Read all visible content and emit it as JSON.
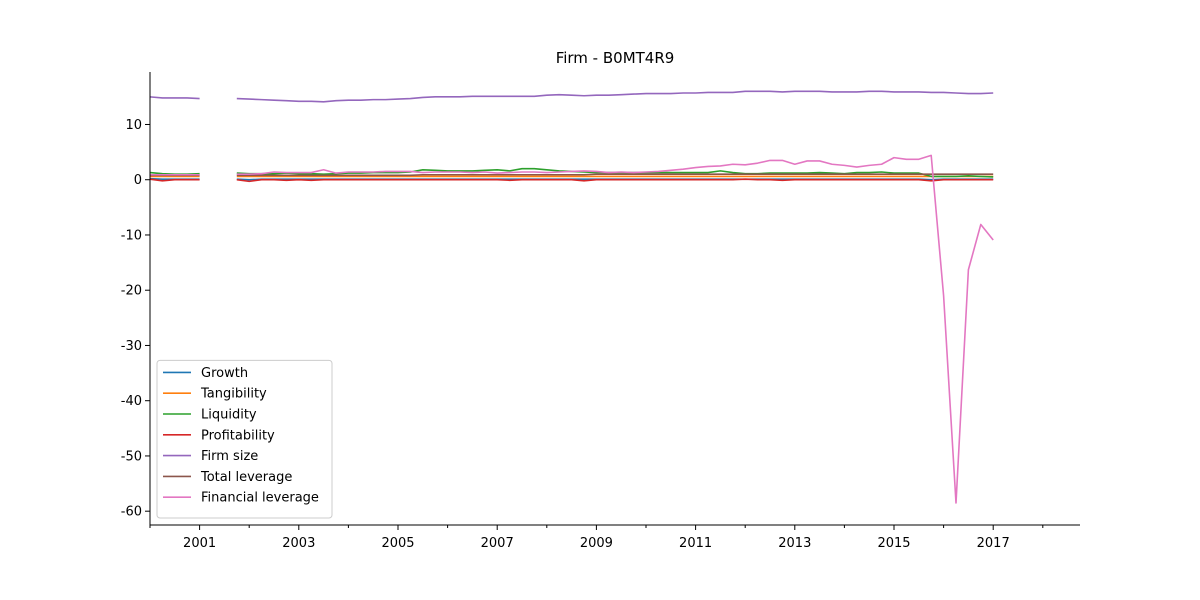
{
  "chart_data": {
    "type": "line",
    "title": "Firm - B0MT4R9",
    "xlabel": "",
    "ylabel": "",
    "xlim": [
      2000.0,
      2018.75
    ],
    "ylim": [
      -62.5,
      19.5
    ],
    "x_ticks": [
      2001,
      2003,
      2005,
      2007,
      2009,
      2011,
      2013,
      2015,
      2017
    ],
    "x_minor_ticks": [
      2000,
      2002,
      2004,
      2006,
      2008,
      2010,
      2012,
      2014,
      2016,
      2018
    ],
    "y_ticks": [
      10,
      0,
      -10,
      -20,
      -30,
      -40,
      -50,
      -60
    ],
    "grid": false,
    "legend_position": "lower-left",
    "x": [
      2000.0,
      2000.25,
      2000.5,
      2000.75,
      2001.0,
      2001.25,
      2001.5,
      2001.75,
      2002.0,
      2002.25,
      2002.5,
      2002.75,
      2003.0,
      2003.25,
      2003.5,
      2003.75,
      2004.0,
      2004.25,
      2004.5,
      2004.75,
      2005.0,
      2005.25,
      2005.5,
      2005.75,
      2006.0,
      2006.25,
      2006.5,
      2006.75,
      2007.0,
      2007.25,
      2007.5,
      2007.75,
      2008.0,
      2008.25,
      2008.5,
      2008.75,
      2009.0,
      2009.25,
      2009.5,
      2009.75,
      2010.0,
      2010.25,
      2010.5,
      2010.75,
      2011.0,
      2011.25,
      2011.5,
      2011.75,
      2012.0,
      2012.25,
      2012.5,
      2012.75,
      2013.0,
      2013.25,
      2013.5,
      2013.75,
      2014.0,
      2014.25,
      2014.5,
      2014.75,
      2015.0,
      2015.25,
      2015.5,
      2015.75,
      2016.0,
      2016.25,
      2016.5,
      2016.75,
      2017.0
    ],
    "series": [
      {
        "name": "Growth",
        "color": "#1f77b4",
        "values": [
          0.2,
          0.1,
          0.1,
          0.1,
          0.1,
          null,
          null,
          0.1,
          0.0,
          0.1,
          0.1,
          0.1,
          0.1,
          0.1,
          0.1,
          0.1,
          0.1,
          0.1,
          0.1,
          0.1,
          0.1,
          0.1,
          0.1,
          0.1,
          0.1,
          0.1,
          0.1,
          0.1,
          0.1,
          0.1,
          0.1,
          0.1,
          0.1,
          0.1,
          0.1,
          0.1,
          0.1,
          0.1,
          0.1,
          0.1,
          0.1,
          0.1,
          0.1,
          0.1,
          0.1,
          0.1,
          0.1,
          0.1,
          0.1,
          0.1,
          0.1,
          0.1,
          0.1,
          0.1,
          0.1,
          0.1,
          0.1,
          0.1,
          0.1,
          0.1,
          0.1,
          0.1,
          0.1,
          0.0,
          0.1,
          0.1,
          0.1,
          0.1,
          0.1
        ]
      },
      {
        "name": "Tangibility",
        "color": "#ff7f0e",
        "values": [
          0.6,
          0.6,
          0.6,
          0.6,
          0.6,
          null,
          null,
          0.6,
          0.6,
          0.6,
          0.6,
          0.6,
          0.6,
          0.6,
          0.6,
          0.6,
          0.6,
          0.6,
          0.6,
          0.6,
          0.6,
          0.6,
          0.6,
          0.6,
          0.6,
          0.6,
          0.6,
          0.6,
          0.6,
          0.6,
          0.6,
          0.6,
          0.6,
          0.6,
          0.6,
          0.6,
          0.6,
          0.6,
          0.6,
          0.6,
          0.6,
          0.6,
          0.6,
          0.6,
          0.6,
          0.6,
          0.6,
          0.6,
          0.6,
          0.6,
          0.6,
          0.6,
          0.6,
          0.6,
          0.6,
          0.6,
          0.6,
          0.6,
          0.6,
          0.6,
          0.6,
          0.6,
          0.6,
          0.6,
          0.6,
          0.6,
          0.6,
          0.6,
          0.6
        ]
      },
      {
        "name": "Liquidity",
        "color": "#2ca02c",
        "values": [
          1.3,
          1.1,
          1.0,
          1.0,
          1.1,
          null,
          null,
          1.2,
          1.1,
          1.1,
          1.1,
          1.2,
          1.1,
          1.1,
          1.0,
          1.1,
          1.2,
          1.2,
          1.3,
          1.3,
          1.3,
          1.4,
          1.8,
          1.7,
          1.6,
          1.6,
          1.6,
          1.7,
          1.8,
          1.6,
          2.0,
          2.0,
          1.8,
          1.6,
          1.5,
          1.4,
          1.3,
          1.3,
          1.3,
          1.3,
          1.3,
          1.3,
          1.3,
          1.3,
          1.3,
          1.3,
          1.6,
          1.3,
          1.1,
          1.1,
          1.2,
          1.2,
          1.2,
          1.2,
          1.3,
          1.2,
          1.1,
          1.3,
          1.3,
          1.4,
          1.2,
          1.2,
          1.2,
          0.6,
          0.6,
          0.6,
          0.7,
          0.6,
          0.5
        ]
      },
      {
        "name": "Profitability",
        "color": "#d62728",
        "values": [
          0.1,
          -0.2,
          0.0,
          0.0,
          0.0,
          null,
          null,
          0.0,
          -0.3,
          0.0,
          0.0,
          -0.1,
          0.0,
          -0.1,
          0.0,
          0.0,
          0.0,
          0.0,
          0.0,
          0.0,
          0.0,
          0.0,
          0.0,
          0.0,
          0.0,
          0.0,
          0.0,
          0.0,
          0.0,
          -0.1,
          0.0,
          0.0,
          0.0,
          0.0,
          0.0,
          -0.2,
          0.0,
          0.0,
          0.0,
          0.0,
          0.0,
          0.0,
          0.0,
          0.0,
          0.0,
          0.0,
          0.0,
          0.0,
          0.1,
          0.0,
          0.0,
          -0.1,
          0.0,
          0.0,
          0.0,
          0.0,
          0.0,
          0.0,
          0.0,
          0.0,
          0.0,
          0.0,
          0.0,
          -0.2,
          0.0,
          0.0,
          0.0,
          0.0,
          0.0
        ]
      },
      {
        "name": "Firm size",
        "color": "#9467bd",
        "values": [
          15.0,
          14.8,
          14.8,
          14.8,
          14.7,
          null,
          null,
          14.7,
          14.6,
          14.5,
          14.4,
          14.3,
          14.2,
          14.2,
          14.1,
          14.3,
          14.4,
          14.4,
          14.5,
          14.5,
          14.6,
          14.7,
          14.9,
          15.0,
          15.0,
          15.0,
          15.1,
          15.1,
          15.1,
          15.1,
          15.1,
          15.1,
          15.3,
          15.4,
          15.3,
          15.2,
          15.3,
          15.3,
          15.4,
          15.5,
          15.6,
          15.6,
          15.6,
          15.7,
          15.7,
          15.8,
          15.8,
          15.8,
          16.0,
          16.0,
          16.0,
          15.9,
          16.0,
          16.0,
          16.0,
          15.9,
          15.9,
          15.9,
          16.0,
          16.0,
          15.9,
          15.9,
          15.9,
          15.8,
          15.8,
          15.7,
          15.6,
          15.6,
          15.7
        ]
      },
      {
        "name": "Total leverage",
        "color": "#8c564b",
        "values": [
          0.8,
          0.8,
          0.8,
          0.8,
          0.8,
          null,
          null,
          0.8,
          0.8,
          0.8,
          0.8,
          0.8,
          0.8,
          0.8,
          0.8,
          0.8,
          0.8,
          0.8,
          0.8,
          0.8,
          0.8,
          0.8,
          0.9,
          0.9,
          0.9,
          0.9,
          0.9,
          0.9,
          0.9,
          0.9,
          0.9,
          0.9,
          0.9,
          0.9,
          0.9,
          0.9,
          1.0,
          1.0,
          1.0,
          1.0,
          1.0,
          1.0,
          1.0,
          1.0,
          1.0,
          1.0,
          1.0,
          1.0,
          1.0,
          1.0,
          1.0,
          1.0,
          1.0,
          1.0,
          1.0,
          1.0,
          1.0,
          1.0,
          1.0,
          1.0,
          1.0,
          1.0,
          1.0,
          1.0,
          1.0,
          1.0,
          1.0,
          1.0,
          1.0
        ]
      },
      {
        "name": "Financial leverage",
        "color": "#e377c2",
        "values": [
          0.9,
          0.9,
          0.9,
          0.9,
          0.9,
          null,
          null,
          1.0,
          1.0,
          1.1,
          1.4,
          1.3,
          1.3,
          1.3,
          1.8,
          1.2,
          1.4,
          1.4,
          1.4,
          1.5,
          1.5,
          1.5,
          1.3,
          1.4,
          1.4,
          1.4,
          1.3,
          1.4,
          1.2,
          1.3,
          1.4,
          1.4,
          1.3,
          1.4,
          1.5,
          1.6,
          1.5,
          1.3,
          1.4,
          1.3,
          1.4,
          1.5,
          1.7,
          1.9,
          2.2,
          2.4,
          2.5,
          2.8,
          2.7,
          3.0,
          3.5,
          3.5,
          2.8,
          3.4,
          3.4,
          2.8,
          2.6,
          2.3,
          2.6,
          2.8,
          4.0,
          3.7,
          3.7,
          4.4,
          -21.0,
          -58.5,
          -16.3,
          -8.1,
          -10.9
        ]
      }
    ]
  }
}
